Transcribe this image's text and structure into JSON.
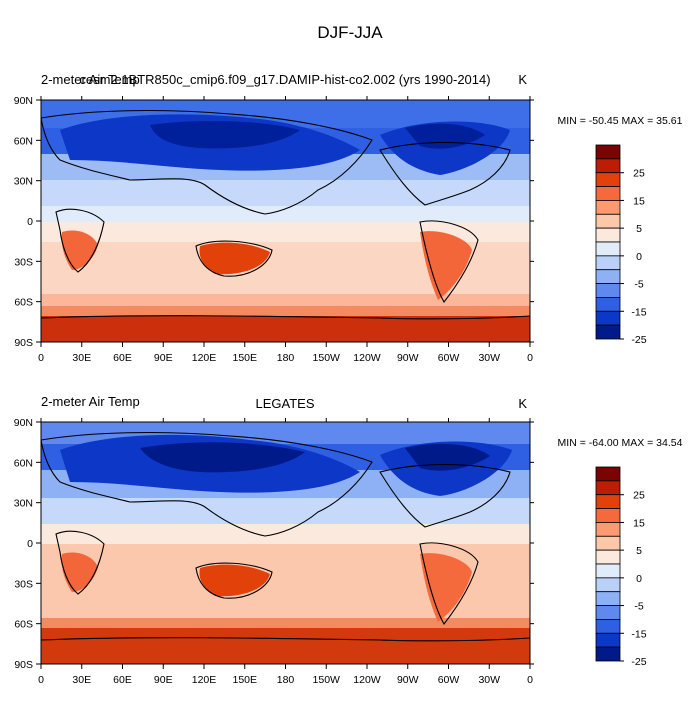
{
  "figure": {
    "title": "DJF-JJA"
  },
  "panels": [
    {
      "left_label": "2-meter Air Temp",
      "center_label": "cesm2.1BTR850c_cmip6.f09_g17.DAMIP-hist-co2.002 (yrs 1990-2014)",
      "units": "K",
      "stats": "MIN = -50.45 MAX =  35.61"
    },
    {
      "left_label": "2-meter Air Temp",
      "center_label": "LEGATES",
      "units": "K",
      "stats": "MIN = -64.00 MAX =  34.54"
    }
  ],
  "axes": {
    "lon_ticks": [
      "0",
      "30E",
      "60E",
      "90E",
      "120E",
      "150E",
      "180",
      "150W",
      "120W",
      "90W",
      "60W",
      "30W",
      "0"
    ],
    "lat_ticks": [
      "90N",
      "60N",
      "30N",
      "0",
      "30S",
      "60S",
      "90S"
    ]
  },
  "colorbar": {
    "labels": [
      "25",
      "15",
      "5",
      "0",
      "-5",
      "-15",
      "-25"
    ],
    "colors": [
      "#7a0403",
      "#bd1d05",
      "#e2420a",
      "#f56a3c",
      "#fc9a73",
      "#fdc7aa",
      "#fbe9de",
      "#e1ecfb",
      "#b9d0f8",
      "#8eb0f4",
      "#5f89ee",
      "#2f5fe3",
      "#0d37c7",
      "#001a8a"
    ]
  },
  "map_colors": {
    "deep_blue": "#0d37c7",
    "mid_blue": "#4f7aea",
    "light_blue": "#9dbcf6",
    "pale_blue": "#d7e6fb",
    "pale_red": "#fbdcc9",
    "light_red": "#fbb394",
    "mid_red": "#f2663a",
    "deep_red": "#c62508"
  }
}
